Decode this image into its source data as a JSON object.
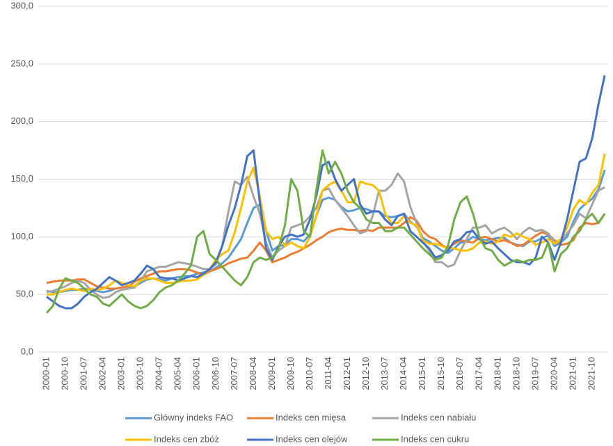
{
  "chart_data": {
    "type": "line",
    "categories": [
      "2000-01",
      null,
      null,
      "2000-10",
      null,
      null,
      "2001-07",
      null,
      null,
      "2002-04",
      null,
      null,
      "2003-01",
      null,
      null,
      "2003-10",
      null,
      null,
      "2004-07",
      null,
      null,
      "2005-04",
      null,
      null,
      "2006-01",
      null,
      null,
      "2006-10",
      null,
      null,
      "2007-07",
      null,
      null,
      "2008-04",
      null,
      null,
      "2009-01",
      null,
      null,
      "2009-10",
      null,
      null,
      "2010-07",
      null,
      null,
      "2011-04",
      null,
      null,
      "2012-01",
      null,
      null,
      "2012-10",
      null,
      null,
      "2013-07",
      null,
      null,
      "2014-04",
      null,
      null,
      "2015-01",
      null,
      null,
      "2015-10",
      null,
      null,
      "2016-07",
      null,
      null,
      "2017-04",
      null,
      null,
      "2018-01",
      null,
      null,
      "2018-10",
      null,
      null,
      "2019-07",
      null,
      null,
      "2020-04",
      null,
      null,
      "2021-01",
      null,
      null,
      "2021-10",
      null,
      null
    ],
    "series": [
      {
        "name": "Główny indeks FAO",
        "color": "#5b9bd5",
        "values": [
          53,
          52,
          52,
          53,
          54,
          54,
          55,
          54,
          53,
          52,
          53,
          55,
          56,
          57,
          57,
          60,
          63,
          64,
          63,
          62,
          64,
          65,
          66,
          66,
          68,
          69,
          70,
          73,
          77,
          82,
          90,
          98,
          112,
          125,
          128,
          105,
          88,
          92,
          93,
          98,
          98,
          96,
          102,
          118,
          132,
          134,
          132,
          126,
          122,
          123,
          125,
          124,
          122,
          122,
          118,
          117,
          118,
          120,
          113,
          109,
          99,
          96,
          92,
          88,
          86,
          90,
          95,
          96,
          100,
          98,
          97,
          98,
          99,
          99,
          95,
          93,
          92,
          96,
          96,
          99,
          101,
          92,
          95,
          100,
          113,
          124,
          129,
          133,
          141,
          158
        ]
      },
      {
        "name": "Indeks cen mięsa",
        "color": "#ed7d31",
        "values": [
          60,
          61,
          62,
          62,
          62,
          63,
          63,
          60,
          57,
          56,
          55,
          55,
          56,
          57,
          61,
          64,
          66,
          68,
          70,
          70,
          71,
          72,
          72,
          71,
          69,
          67,
          70,
          72,
          74,
          77,
          79,
          81,
          82,
          88,
          95,
          88,
          78,
          80,
          82,
          85,
          87,
          90,
          93,
          97,
          100,
          104,
          106,
          107,
          106,
          106,
          105,
          106,
          105,
          108,
          108,
          108,
          108,
          112,
          117,
          114,
          105,
          100,
          98,
          93,
          90,
          94,
          97,
          96,
          95,
          99,
          100,
          98,
          96,
          97,
          95,
          92,
          93,
          97,
          101,
          104,
          102,
          97,
          93,
          94,
          97,
          108,
          112,
          111,
          112,
          120
        ]
      },
      {
        "name": "Indeks cen nabiału",
        "color": "#a5a5a5",
        "values": [
          52,
          53,
          55,
          57,
          60,
          62,
          60,
          54,
          50,
          47,
          48,
          52,
          54,
          55,
          56,
          62,
          70,
          72,
          74,
          74,
          76,
          78,
          77,
          76,
          74,
          72,
          72,
          76,
          92,
          122,
          148,
          145,
          152,
          135,
          120,
          95,
          82,
          88,
          92,
          108,
          110,
          112,
          118,
          125,
          140,
          142,
          132,
          125,
          118,
          110,
          103,
          105,
          118,
          140,
          140,
          145,
          155,
          148,
          126,
          112,
          96,
          88,
          78,
          78,
          74,
          76,
          88,
          98,
          108,
          108,
          110,
          103,
          106,
          108,
          104,
          98,
          104,
          108,
          105,
          106,
          103,
          95,
          97,
          103,
          110,
          120,
          116,
          128,
          140,
          143
        ]
      },
      {
        "name": "Indeks cen zbóż",
        "color": "#ffc000",
        "values": [
          50,
          50,
          52,
          54,
          55,
          54,
          53,
          55,
          54,
          55,
          58,
          62,
          60,
          58,
          57,
          62,
          64,
          64,
          62,
          60,
          60,
          61,
          62,
          62,
          63,
          67,
          72,
          80,
          85,
          88,
          104,
          125,
          148,
          160,
          135,
          105,
          98,
          100,
          92,
          95,
          92,
          90,
          100,
          118,
          140,
          145,
          148,
          140,
          130,
          130,
          148,
          146,
          145,
          140,
          120,
          112,
          112,
          118,
          112,
          110,
          97,
          94,
          94,
          92,
          90,
          90,
          88,
          88,
          90,
          95,
          96,
          94,
          96,
          102,
          100,
          103,
          100,
          98,
          93,
          95,
          98,
          94,
          98,
          108,
          124,
          132,
          128,
          138,
          145,
          172
        ]
      },
      {
        "name": "Indeks cen olejów",
        "color": "#4472c4",
        "values": [
          48,
          44,
          40,
          38,
          38,
          42,
          48,
          52,
          55,
          60,
          65,
          62,
          58,
          60,
          62,
          68,
          75,
          72,
          65,
          64,
          64,
          62,
          64,
          66,
          65,
          68,
          72,
          78,
          92,
          110,
          125,
          145,
          170,
          175,
          130,
          90,
          80,
          92,
          100,
          102,
          100,
          102,
          115,
          135,
          162,
          165,
          150,
          140,
          145,
          150,
          128,
          120,
          122,
          122,
          115,
          110,
          118,
          120,
          105,
          100,
          95,
          90,
          82,
          84,
          88,
          96,
          98,
          104,
          105,
          98,
          94,
          96,
          90,
          85,
          80,
          78,
          78,
          76,
          82,
          100,
          95,
          80,
          95,
          115,
          140,
          165,
          168,
          185,
          215,
          240
        ]
      },
      {
        "name": "Indeks cen cukru",
        "color": "#70ad47",
        "values": [
          34,
          40,
          55,
          64,
          62,
          60,
          55,
          50,
          48,
          42,
          40,
          45,
          50,
          44,
          40,
          38,
          40,
          45,
          52,
          56,
          58,
          62,
          68,
          75,
          100,
          105,
          85,
          80,
          74,
          68,
          62,
          58,
          65,
          78,
          82,
          80,
          82,
          90,
          110,
          150,
          140,
          105,
          100,
          140,
          175,
          155,
          165,
          155,
          140,
          130,
          125,
          115,
          112,
          112,
          105,
          105,
          108,
          108,
          102,
          96,
          90,
          85,
          80,
          82,
          92,
          115,
          130,
          135,
          120,
          100,
          90,
          88,
          80,
          75,
          78,
          80,
          78,
          80,
          80,
          82,
          95,
          70,
          85,
          90,
          100,
          105,
          115,
          120,
          112,
          120
        ]
      }
    ],
    "ylim": [
      0,
      300
    ],
    "yticks": [
      {
        "value": 0,
        "label": "0,0"
      },
      {
        "value": 50,
        "label": "50,0"
      },
      {
        "value": 100,
        "label": "100,0"
      },
      {
        "value": 150,
        "label": "150,0"
      },
      {
        "value": 200,
        "label": "200,0"
      },
      {
        "value": 250,
        "label": "250,0"
      },
      {
        "value": 300,
        "label": "300,0"
      }
    ],
    "grid": true,
    "legend": "bottom"
  }
}
